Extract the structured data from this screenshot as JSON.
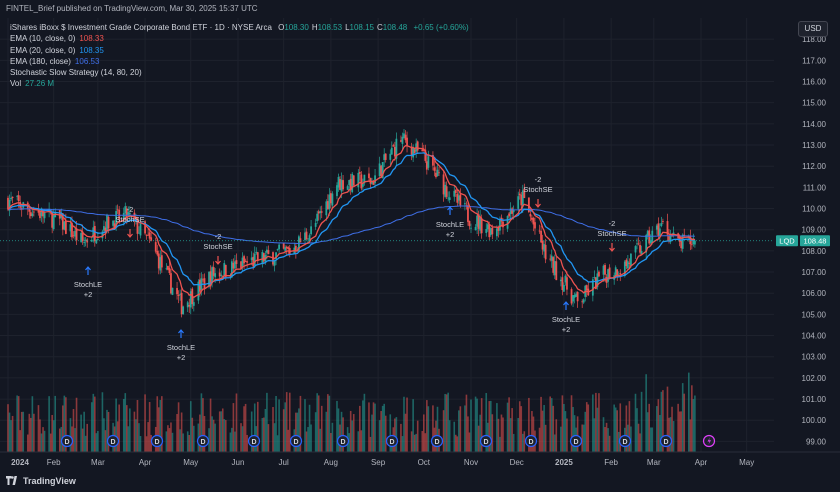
{
  "header": {
    "publisher_line": "FINTEL_Brief published on TradingView.com, Mar 30, 2025 15:37 UTC"
  },
  "legend": {
    "symbol": "iShares iBoxx $ Investment Grade Corporate Bond ETF · 1D · NYSE Arca",
    "ohlc": [
      {
        "k": "O",
        "v": "108.30"
      },
      {
        "k": "H",
        "v": "108.53"
      },
      {
        "k": "L",
        "v": "108.15"
      },
      {
        "k": "C",
        "v": "108.48"
      }
    ],
    "change": "+0.65 (+0.60%)",
    "indicators": [
      {
        "label": "EMA (10, close, 0)",
        "value": "108.33",
        "color": "#ef5350"
      },
      {
        "label": "EMA (20, close, 0)",
        "value": "108.35",
        "color": "#2196f3"
      },
      {
        "label": "EMA (180, close)",
        "value": "106.53",
        "color": "#3f6fe8"
      },
      {
        "label": "Stochastic Slow Strategy (14, 80, 20)",
        "value": "",
        "color": "#d1d4dc"
      },
      {
        "label": "Vol",
        "value": "27.26 M",
        "color": "#26a69a"
      }
    ]
  },
  "currency_button": "USD",
  "y_axis": {
    "ticks": [
      "118.00",
      "117.00",
      "116.00",
      "115.00",
      "114.00",
      "113.00",
      "112.00",
      "111.00",
      "110.00",
      "109.00",
      "108.00",
      "107.00",
      "106.00",
      "105.00",
      "104.00",
      "103.00",
      "102.00",
      "101.00",
      "100.00",
      "99.00"
    ],
    "price_label": {
      "ticker": "LQD",
      "value": "108.48"
    }
  },
  "x_axis": {
    "ticks": [
      "2024",
      "Feb",
      "Mar",
      "Apr",
      "May",
      "Jun",
      "Jul",
      "Aug",
      "Sep",
      "Oct",
      "Nov",
      "Dec",
      "2025",
      "Feb",
      "Mar",
      "Apr",
      "May"
    ]
  },
  "signals": [
    {
      "type": "sell",
      "lines": [
        "-2",
        "StochSE"
      ]
    },
    {
      "type": "buy",
      "lines": [
        "StochLE",
        "+2"
      ]
    },
    {
      "type": "sell",
      "lines": [
        "-2",
        "StochSE"
      ]
    },
    {
      "type": "buy",
      "lines": [
        "StochLE",
        "+2"
      ]
    },
    {
      "type": "buy",
      "lines": [
        "StochLE",
        "+2"
      ]
    },
    {
      "type": "sell",
      "lines": [
        "-2",
        "StochSE"
      ]
    },
    {
      "type": "buy",
      "lines": [
        "StochLE",
        "+2"
      ]
    },
    {
      "type": "sell",
      "lines": [
        "-2",
        "StochSE"
      ]
    }
  ],
  "event_badges": [
    "D",
    "D",
    "D",
    "D",
    "D",
    "D",
    "D",
    "D",
    "D",
    "D",
    "D",
    "D",
    "D",
    "D",
    "D"
  ],
  "colors": {
    "background": "#131722",
    "up": "#26a69a",
    "down": "#ef5350",
    "ema10": "#ef5350",
    "ema20": "#2196f3",
    "ema180": "#3f6fe8",
    "text": "#d1d4dc"
  },
  "chart_data": {
    "type": "candlestick",
    "x_range": [
      "2024-01-02",
      "2025-05-15"
    ],
    "y_range": [
      98.5,
      119
    ],
    "close_path": [
      {
        "date": "2024-01-02",
        "close": 110.4
      },
      {
        "date": "2024-01-15",
        "close": 110.0
      },
      {
        "date": "2024-02-05",
        "close": 109.4
      },
      {
        "date": "2024-02-20",
        "close": 108.4
      },
      {
        "date": "2024-03-06",
        "close": 109.3
      },
      {
        "date": "2024-03-20",
        "close": 109.7
      },
      {
        "date": "2024-04-05",
        "close": 108.3
      },
      {
        "date": "2024-04-25",
        "close": 105.4
      },
      {
        "date": "2024-05-15",
        "close": 106.9
      },
      {
        "date": "2024-06-10",
        "close": 107.5
      },
      {
        "date": "2024-07-05",
        "close": 108.0
      },
      {
        "date": "2024-07-20",
        "close": 109.0
      },
      {
        "date": "2024-08-05",
        "close": 111.2
      },
      {
        "date": "2024-08-28",
        "close": 111.3
      },
      {
        "date": "2024-09-16",
        "close": 113.3
      },
      {
        "date": "2024-10-01",
        "close": 112.4
      },
      {
        "date": "2024-10-15",
        "close": 111.0
      },
      {
        "date": "2024-11-01",
        "close": 109.5
      },
      {
        "date": "2024-11-15",
        "close": 109.0
      },
      {
        "date": "2024-12-05",
        "close": 110.5
      },
      {
        "date": "2024-12-20",
        "close": 107.8
      },
      {
        "date": "2025-01-10",
        "close": 105.5
      },
      {
        "date": "2025-01-25",
        "close": 106.8
      },
      {
        "date": "2025-02-10",
        "close": 107.3
      },
      {
        "date": "2025-02-25",
        "close": 108.5
      },
      {
        "date": "2025-03-07",
        "close": 109.2
      },
      {
        "date": "2025-03-17",
        "close": 108.3
      },
      {
        "date": "2025-03-28",
        "close": 108.48
      }
    ],
    "ema10_last": 108.33,
    "ema20_last": 108.35,
    "ema180_last": 106.53,
    "last_price": 108.48,
    "volume_last": "27.26 M",
    "grid": true
  }
}
